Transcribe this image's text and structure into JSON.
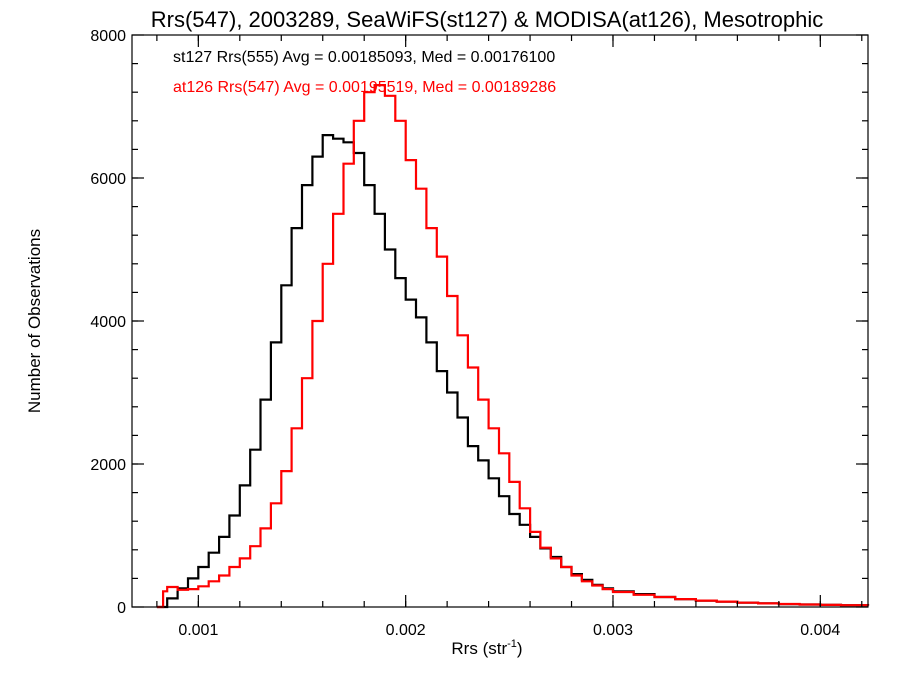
{
  "chart_data": {
    "type": "line",
    "title": "Rrs(547), 2003289, SeaWiFS(st127) & MODISA(at126), Mesotrophic",
    "xlabel": "Rrs (str",
    "xlabel_exp": "-1",
    "xlabel_close": ")",
    "ylabel": "Number of Observations",
    "xlim": [
      0.00068,
      0.00423
    ],
    "ylim": [
      0,
      8000
    ],
    "x_ticks": [
      {
        "value": 0.001,
        "label": "0.001"
      },
      {
        "value": 0.002,
        "label": "0.002"
      },
      {
        "value": 0.003,
        "label": "0.003"
      },
      {
        "value": 0.004,
        "label": "0.004"
      }
    ],
    "y_ticks": [
      {
        "value": 0,
        "label": "0"
      },
      {
        "value": 2000,
        "label": "2000"
      },
      {
        "value": 4000,
        "label": "4000"
      },
      {
        "value": 6000,
        "label": "6000"
      },
      {
        "value": 8000,
        "label": "8000"
      }
    ],
    "annotations": [
      {
        "text": "st127 Rrs(555) Avg = 0.00185093, Med = 0.00176100",
        "color": "#000000"
      },
      {
        "text": "at126 Rrs(547) Avg = 0.00195519, Med = 0.00189286",
        "color": "#ff0000"
      }
    ],
    "series": [
      {
        "color": "#000000",
        "points": [
          [
            0.0008,
            0
          ],
          [
            0.00085,
            120
          ],
          [
            0.0009,
            260
          ],
          [
            0.00095,
            400
          ],
          [
            0.001,
            560
          ],
          [
            0.00105,
            760
          ],
          [
            0.0011,
            980
          ],
          [
            0.00115,
            1280
          ],
          [
            0.0012,
            1700
          ],
          [
            0.00125,
            2200
          ],
          [
            0.0013,
            2900
          ],
          [
            0.00135,
            3700
          ],
          [
            0.0014,
            4500
          ],
          [
            0.00145,
            5300
          ],
          [
            0.0015,
            5900
          ],
          [
            0.00155,
            6300
          ],
          [
            0.0016,
            6600
          ],
          [
            0.00165,
            6550
          ],
          [
            0.0017,
            6500
          ],
          [
            0.00175,
            6350
          ],
          [
            0.0018,
            5900
          ],
          [
            0.00185,
            5500
          ],
          [
            0.0019,
            5000
          ],
          [
            0.00195,
            4600
          ],
          [
            0.002,
            4300
          ],
          [
            0.00205,
            4050
          ],
          [
            0.0021,
            3700
          ],
          [
            0.00215,
            3300
          ],
          [
            0.0022,
            3000
          ],
          [
            0.00225,
            2650
          ],
          [
            0.0023,
            2250
          ],
          [
            0.00235,
            2050
          ],
          [
            0.0024,
            1800
          ],
          [
            0.00245,
            1550
          ],
          [
            0.0025,
            1300
          ],
          [
            0.00255,
            1150
          ],
          [
            0.0026,
            980
          ],
          [
            0.00265,
            820
          ],
          [
            0.0027,
            700
          ],
          [
            0.00275,
            560
          ],
          [
            0.0028,
            460
          ],
          [
            0.00285,
            380
          ],
          [
            0.0029,
            310
          ],
          [
            0.00295,
            260
          ],
          [
            0.003,
            220
          ],
          [
            0.0031,
            180
          ],
          [
            0.0032,
            140
          ],
          [
            0.0033,
            110
          ],
          [
            0.0034,
            90
          ],
          [
            0.0035,
            75
          ],
          [
            0.0036,
            60
          ],
          [
            0.0037,
            50
          ],
          [
            0.0038,
            40
          ],
          [
            0.0039,
            35
          ],
          [
            0.004,
            30
          ],
          [
            0.0041,
            25
          ],
          [
            0.00423,
            20
          ]
        ]
      },
      {
        "color": "#ff0000",
        "points": [
          [
            0.0008,
            0
          ],
          [
            0.00083,
            220
          ],
          [
            0.00085,
            280
          ],
          [
            0.0009,
            240
          ],
          [
            0.00095,
            250
          ],
          [
            0.001,
            290
          ],
          [
            0.00105,
            360
          ],
          [
            0.0011,
            440
          ],
          [
            0.00115,
            560
          ],
          [
            0.0012,
            680
          ],
          [
            0.00125,
            850
          ],
          [
            0.0013,
            1100
          ],
          [
            0.00135,
            1450
          ],
          [
            0.0014,
            1900
          ],
          [
            0.00145,
            2500
          ],
          [
            0.0015,
            3200
          ],
          [
            0.00155,
            4000
          ],
          [
            0.0016,
            4800
          ],
          [
            0.00165,
            5500
          ],
          [
            0.0017,
            6200
          ],
          [
            0.00175,
            6800
          ],
          [
            0.0018,
            7200
          ],
          [
            0.00185,
            7300
          ],
          [
            0.0019,
            7150
          ],
          [
            0.00195,
            6800
          ],
          [
            0.002,
            6250
          ],
          [
            0.00205,
            5850
          ],
          [
            0.0021,
            5300
          ],
          [
            0.00215,
            4900
          ],
          [
            0.0022,
            4350
          ],
          [
            0.00225,
            3800
          ],
          [
            0.0023,
            3350
          ],
          [
            0.00235,
            2900
          ],
          [
            0.0024,
            2500
          ],
          [
            0.00245,
            2150
          ],
          [
            0.0025,
            1750
          ],
          [
            0.00255,
            1380
          ],
          [
            0.0026,
            1050
          ],
          [
            0.00265,
            830
          ],
          [
            0.0027,
            680
          ],
          [
            0.00275,
            560
          ],
          [
            0.0028,
            440
          ],
          [
            0.00285,
            360
          ],
          [
            0.0029,
            300
          ],
          [
            0.00295,
            250
          ],
          [
            0.003,
            210
          ],
          [
            0.0031,
            170
          ],
          [
            0.0032,
            140
          ],
          [
            0.0033,
            110
          ],
          [
            0.0034,
            90
          ],
          [
            0.0035,
            75
          ],
          [
            0.0036,
            60
          ],
          [
            0.0037,
            50
          ],
          [
            0.0038,
            42
          ],
          [
            0.0039,
            35
          ],
          [
            0.004,
            30
          ],
          [
            0.0041,
            25
          ],
          [
            0.00423,
            20
          ]
        ]
      }
    ]
  }
}
